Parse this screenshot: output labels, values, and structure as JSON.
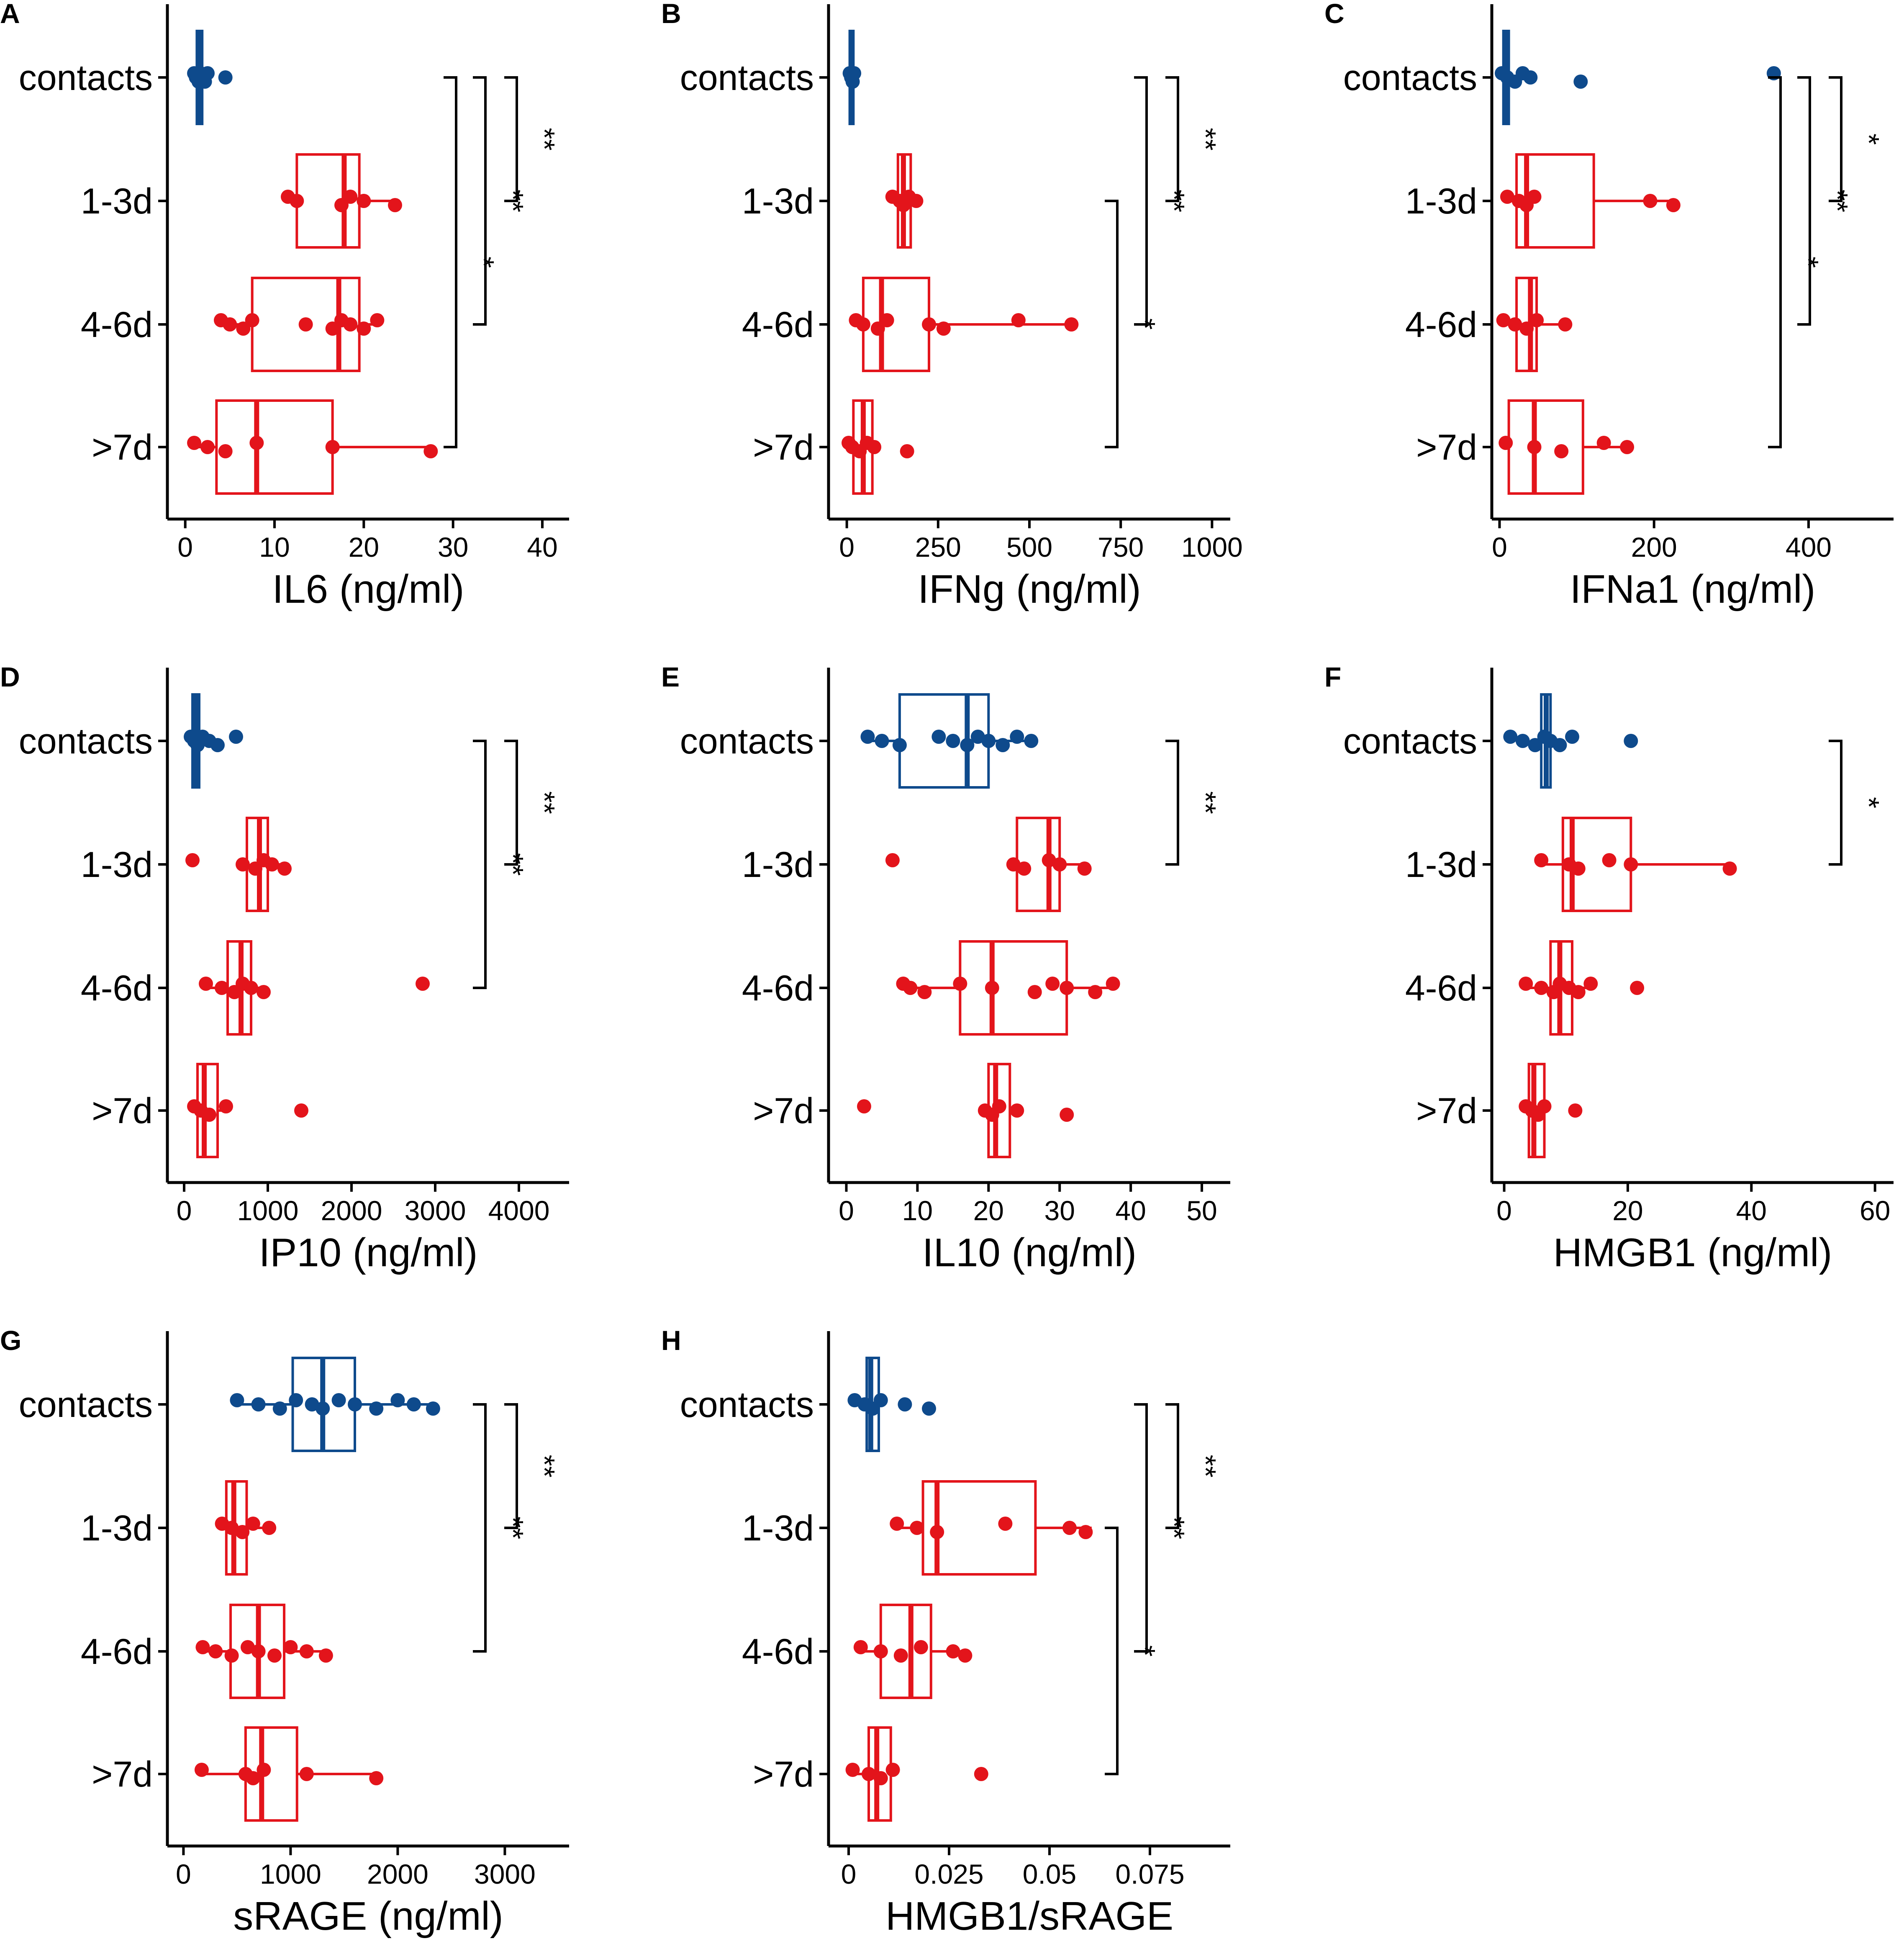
{
  "colors": {
    "contacts": "#0e4a8c",
    "patients": "#e3141b",
    "axis": "#000000"
  },
  "chart_data": [
    {
      "type": "boxplot",
      "panel_label": "A",
      "xlabel": "IL6 (ng/ml)",
      "xlim": [
        -2,
        43
      ],
      "xticks": [
        0,
        10,
        20,
        30,
        40
      ],
      "xtick_labels": [
        "0",
        "10",
        "20",
        "30",
        "40"
      ],
      "categories": [
        "contacts",
        "1-3d",
        "4-6d",
        ">7d"
      ],
      "boxes": [
        {
          "group": "contacts",
          "min": 0.8,
          "q1": 1.3,
          "median": 1.6,
          "q3": 1.9,
          "max": 2.5
        },
        {
          "group": "1-3d",
          "min": 11.5,
          "q1": 12.5,
          "median": 17.8,
          "q3": 19.5,
          "max": 23.5
        },
        {
          "group": "4-6d",
          "min": 4.0,
          "q1": 7.5,
          "median": 17.2,
          "q3": 19.5,
          "max": 21.5
        },
        {
          "group": ">7d",
          "min": 1.0,
          "q1": 3.5,
          "median": 8.0,
          "q3": 16.5,
          "max": 27.5
        }
      ],
      "points": [
        [
          1.0,
          1.2,
          1.5,
          1.7,
          2.0,
          2.2,
          2.5,
          4.5
        ],
        [
          11.5,
          12.5,
          17.5,
          18.5,
          20.0,
          23.5
        ],
        [
          4.0,
          5.0,
          6.5,
          7.5,
          13.5,
          16.5,
          17.5,
          18.5,
          20.0,
          21.5
        ],
        [
          1.0,
          2.5,
          4.5,
          8.0,
          16.5,
          27.5
        ]
      ],
      "significance": [
        {
          "from": "contacts",
          "to": "1-3d",
          "label": "**"
        },
        {
          "from": "contacts",
          "to": "4-6d",
          "label": "**"
        },
        {
          "from": "contacts",
          "to": ">7d",
          "label": "*"
        }
      ]
    },
    {
      "type": "boxplot",
      "panel_label": "B",
      "xlabel": "IFNg (ng/ml)",
      "xlim": [
        -50,
        1050
      ],
      "xticks": [
        0,
        250,
        500,
        750,
        1000
      ],
      "xtick_labels": [
        "0",
        "250",
        "500",
        "750",
        "1000"
      ],
      "categories": [
        "contacts",
        "1-3d",
        "4-6d",
        ">7d"
      ],
      "boxes": [
        {
          "group": "contacts",
          "min": 5,
          "q1": 8,
          "median": 12,
          "q3": 18,
          "max": 22
        },
        {
          "group": "1-3d",
          "min": 125,
          "q1": 140,
          "median": 155,
          "q3": 175,
          "max": 195
        },
        {
          "group": "4-6d",
          "min": 20,
          "q1": 45,
          "median": 95,
          "q3": 225,
          "max": 615
        },
        {
          "group": ">7d",
          "min": 5,
          "q1": 18,
          "median": 45,
          "q3": 70,
          "max": 85
        }
      ],
      "points": [
        [
          8,
          12,
          16,
          20
        ],
        [
          125,
          145,
          155,
          170,
          190
        ],
        [
          25,
          45,
          85,
          110,
          225,
          265,
          470,
          615
        ],
        [
          5,
          15,
          35,
          55,
          75,
          165
        ]
      ],
      "significance": [
        {
          "from": "contacts",
          "to": "1-3d",
          "label": "**"
        },
        {
          "from": "contacts",
          "to": "4-6d",
          "label": "**"
        },
        {
          "from": "1-3d",
          "to": ">7d",
          "label": "*"
        }
      ]
    },
    {
      "type": "boxplot",
      "panel_label": "C",
      "xlabel": "IFNa1 (ng/ml)",
      "xlim": [
        -10,
        510
      ],
      "xticks": [
        0,
        200,
        400
      ],
      "xtick_labels": [
        "0",
        "200",
        "400"
      ],
      "categories": [
        "contacts",
        "1-3d",
        "4-6d",
        ">7d"
      ],
      "boxes": [
        {
          "group": "contacts",
          "min": 2,
          "q1": 5,
          "median": 8,
          "q3": 12,
          "max": 20
        },
        {
          "group": "1-3d",
          "min": 10,
          "q1": 22,
          "median": 35,
          "q3": 122,
          "max": 225
        },
        {
          "group": "4-6d",
          "min": 5,
          "q1": 22,
          "median": 40,
          "q3": 48,
          "max": 85
        },
        {
          "group": ">7d",
          "min": 5,
          "q1": 12,
          "median": 45,
          "q3": 108,
          "max": 165
        }
      ],
      "points": [
        [
          3,
          10,
          20,
          30,
          40,
          105,
          355
        ],
        [
          10,
          25,
          35,
          45,
          195,
          225
        ],
        [
          5,
          20,
          35,
          48,
          85
        ],
        [
          8,
          45,
          80,
          135,
          165
        ]
      ],
      "significance": [
        {
          "from": "contacts",
          "to": "1-3d",
          "label": "*"
        },
        {
          "from": "contacts",
          "to": "4-6d",
          "label": "**"
        },
        {
          "from": "contacts",
          "to": ">7d",
          "label": "*"
        }
      ]
    },
    {
      "type": "boxplot",
      "panel_label": "D",
      "xlabel": "IP10 (ng/ml)",
      "xlim": [
        -200,
        4600
      ],
      "xticks": [
        0,
        1000,
        2000,
        3000,
        4000
      ],
      "xtick_labels": [
        "0",
        "1000",
        "2000",
        "3000",
        "4000"
      ],
      "categories": [
        "contacts",
        "1-3d",
        "4-6d",
        ">7d"
      ],
      "boxes": [
        {
          "group": "contacts",
          "min": 60,
          "q1": 100,
          "median": 140,
          "q3": 180,
          "max": 240
        },
        {
          "group": "1-3d",
          "min": 700,
          "q1": 750,
          "median": 900,
          "q3": 1000,
          "max": 1200
        },
        {
          "group": "4-6d",
          "min": 260,
          "q1": 520,
          "median": 680,
          "q3": 800,
          "max": 1000
        },
        {
          "group": ">7d",
          "min": 120,
          "q1": 160,
          "median": 240,
          "q3": 400,
          "max": 520
        }
      ],
      "points": [
        [
          80,
          120,
          160,
          220,
          300,
          400,
          620
        ],
        [
          100,
          700,
          850,
          950,
          1050,
          1200
        ],
        [
          260,
          450,
          600,
          700,
          800,
          950,
          2850
        ],
        [
          120,
          200,
          300,
          500,
          1400
        ]
      ],
      "significance": [
        {
          "from": "contacts",
          "to": "1-3d",
          "label": "**"
        },
        {
          "from": "contacts",
          "to": "4-6d",
          "label": "**"
        }
      ]
    },
    {
      "type": "boxplot",
      "panel_label": "E",
      "xlabel": "IL10 (ng/ml)",
      "xlim": [
        -2.5,
        54
      ],
      "xticks": [
        0,
        10,
        20,
        30,
        40,
        50
      ],
      "xtick_labels": [
        "0",
        "10",
        "20",
        "30",
        "40",
        "50"
      ],
      "categories": [
        "contacts",
        "1-3d",
        "4-6d",
        ">7d"
      ],
      "boxes": [
        {
          "group": "contacts",
          "min": 3,
          "q1": 7.5,
          "median": 17,
          "q3": 20,
          "max": 26
        },
        {
          "group": "1-3d",
          "min": 24,
          "q1": 24,
          "median": 28.5,
          "q3": 30,
          "max": 33.5
        },
        {
          "group": "4-6d",
          "min": 8,
          "q1": 16,
          "median": 20.5,
          "q3": 31,
          "max": 38
        },
        {
          "group": ">7d",
          "min": 20,
          "q1": 20,
          "median": 21,
          "q3": 23,
          "max": 23
        }
      ],
      "points": [
        [
          3,
          5,
          7.5,
          13,
          15,
          17,
          18.5,
          20,
          22,
          24,
          26
        ],
        [
          6.5,
          23.5,
          25,
          28.5,
          30,
          33.5
        ],
        [
          8,
          9,
          11,
          16,
          20.5,
          26.5,
          29,
          31,
          35,
          37.5
        ],
        [
          2.5,
          19.5,
          20.5,
          21.5,
          24,
          31
        ]
      ],
      "significance": [
        {
          "from": "contacts",
          "to": "1-3d",
          "label": "**"
        }
      ]
    },
    {
      "type": "boxplot",
      "panel_label": "F",
      "xlabel": "HMGB1 (ng/ml)",
      "xlim": [
        -2,
        63
      ],
      "xticks": [
        0,
        20,
        40,
        60
      ],
      "xtick_labels": [
        "0",
        "20",
        "40",
        "60"
      ],
      "categories": [
        "contacts",
        "1-3d",
        "4-6d",
        ">7d"
      ],
      "boxes": [
        {
          "group": "contacts",
          "min": 5,
          "q1": 6,
          "median": 6.8,
          "q3": 7.5,
          "max": 8.5
        },
        {
          "group": "1-3d",
          "min": 6,
          "q1": 9.5,
          "median": 11,
          "q3": 20.5,
          "max": 36.5
        },
        {
          "group": "4-6d",
          "min": 3.5,
          "q1": 7.5,
          "median": 9,
          "q3": 11,
          "max": 14
        },
        {
          "group": ">7d",
          "min": 3.5,
          "q1": 4,
          "median": 4.8,
          "q3": 6.5,
          "max": 7
        }
      ],
      "points": [
        [
          1,
          3,
          5,
          6.5,
          7.5,
          9,
          11,
          20.5
        ],
        [
          6,
          10.5,
          12,
          17,
          20.5,
          36.5
        ],
        [
          3.5,
          6,
          8,
          9,
          10.5,
          12,
          14,
          21.5
        ],
        [
          3.5,
          4.5,
          5.5,
          6.5,
          11.5
        ]
      ],
      "significance": [
        {
          "from": "contacts",
          "to": "1-3d",
          "label": "*"
        }
      ]
    },
    {
      "type": "boxplot",
      "panel_label": "G",
      "xlabel": "sRAGE (ng/ml)",
      "xlim": [
        -150,
        3600
      ],
      "xticks": [
        0,
        1000,
        2000,
        3000
      ],
      "xtick_labels": [
        "0",
        "1000",
        "2000",
        "3000"
      ],
      "categories": [
        "contacts",
        "1-3d",
        "4-6d",
        ">7d"
      ],
      "boxes": [
        {
          "group": "contacts",
          "min": 500,
          "q1": 1020,
          "median": 1300,
          "q3": 1600,
          "max": 2330
        },
        {
          "group": "1-3d",
          "min": 360,
          "q1": 400,
          "median": 470,
          "q3": 590,
          "max": 800
        },
        {
          "group": "4-6d",
          "min": 180,
          "q1": 440,
          "median": 700,
          "q3": 940,
          "max": 1330
        },
        {
          "group": ">7d",
          "min": 170,
          "q1": 580,
          "median": 730,
          "q3": 1060,
          "max": 1800
        }
      ],
      "points": [
        [
          500,
          700,
          900,
          1050,
          1200,
          1300,
          1450,
          1600,
          1800,
          2000,
          2150,
          2330
        ],
        [
          360,
          450,
          550,
          650,
          800
        ],
        [
          180,
          300,
          450,
          600,
          700,
          850,
          1000,
          1150,
          1330
        ],
        [
          170,
          580,
          650,
          750,
          1150,
          1800
        ]
      ],
      "significance": [
        {
          "from": "contacts",
          "to": "1-3d",
          "label": "**"
        },
        {
          "from": "contacts",
          "to": "4-6d",
          "label": "**"
        }
      ]
    },
    {
      "type": "boxplot",
      "panel_label": "H",
      "xlabel": "HMGB1/sRAGE",
      "xlim": [
        -0.005,
        0.095
      ],
      "xticks": [
        0,
        0.025,
        0.05,
        0.075
      ],
      "xtick_labels": [
        "0",
        "0.025",
        "0.05",
        "0.075"
      ],
      "categories": [
        "contacts",
        "1-3d",
        "4-6d",
        ">7d"
      ],
      "boxes": [
        {
          "group": "contacts",
          "min": 0.003,
          "q1": 0.0045,
          "median": 0.0055,
          "q3": 0.0075,
          "max": 0.009
        },
        {
          "group": "1-3d",
          "min": 0.011,
          "q1": 0.0185,
          "median": 0.022,
          "q3": 0.0465,
          "max": 0.0605
        },
        {
          "group": "4-6d",
          "min": 0.003,
          "q1": 0.008,
          "median": 0.0155,
          "q3": 0.0205,
          "max": 0.029
        },
        {
          "group": ">7d",
          "min": 0.001,
          "q1": 0.005,
          "median": 0.007,
          "q3": 0.0105,
          "max": 0.011
        }
      ],
      "points": [
        [
          0.0015,
          0.004,
          0.006,
          0.008,
          0.014,
          0.02
        ],
        [
          0.012,
          0.017,
          0.022,
          0.039,
          0.055,
          0.059
        ],
        [
          0.003,
          0.008,
          0.013,
          0.018,
          0.026,
          0.029
        ],
        [
          0.001,
          0.005,
          0.008,
          0.011,
          0.033
        ]
      ],
      "significance": [
        {
          "from": "contacts",
          "to": "1-3d",
          "label": "**"
        },
        {
          "from": "contacts",
          "to": "4-6d",
          "label": "**"
        },
        {
          "from": "1-3d",
          "to": ">7d",
          "label": "*"
        }
      ]
    }
  ]
}
